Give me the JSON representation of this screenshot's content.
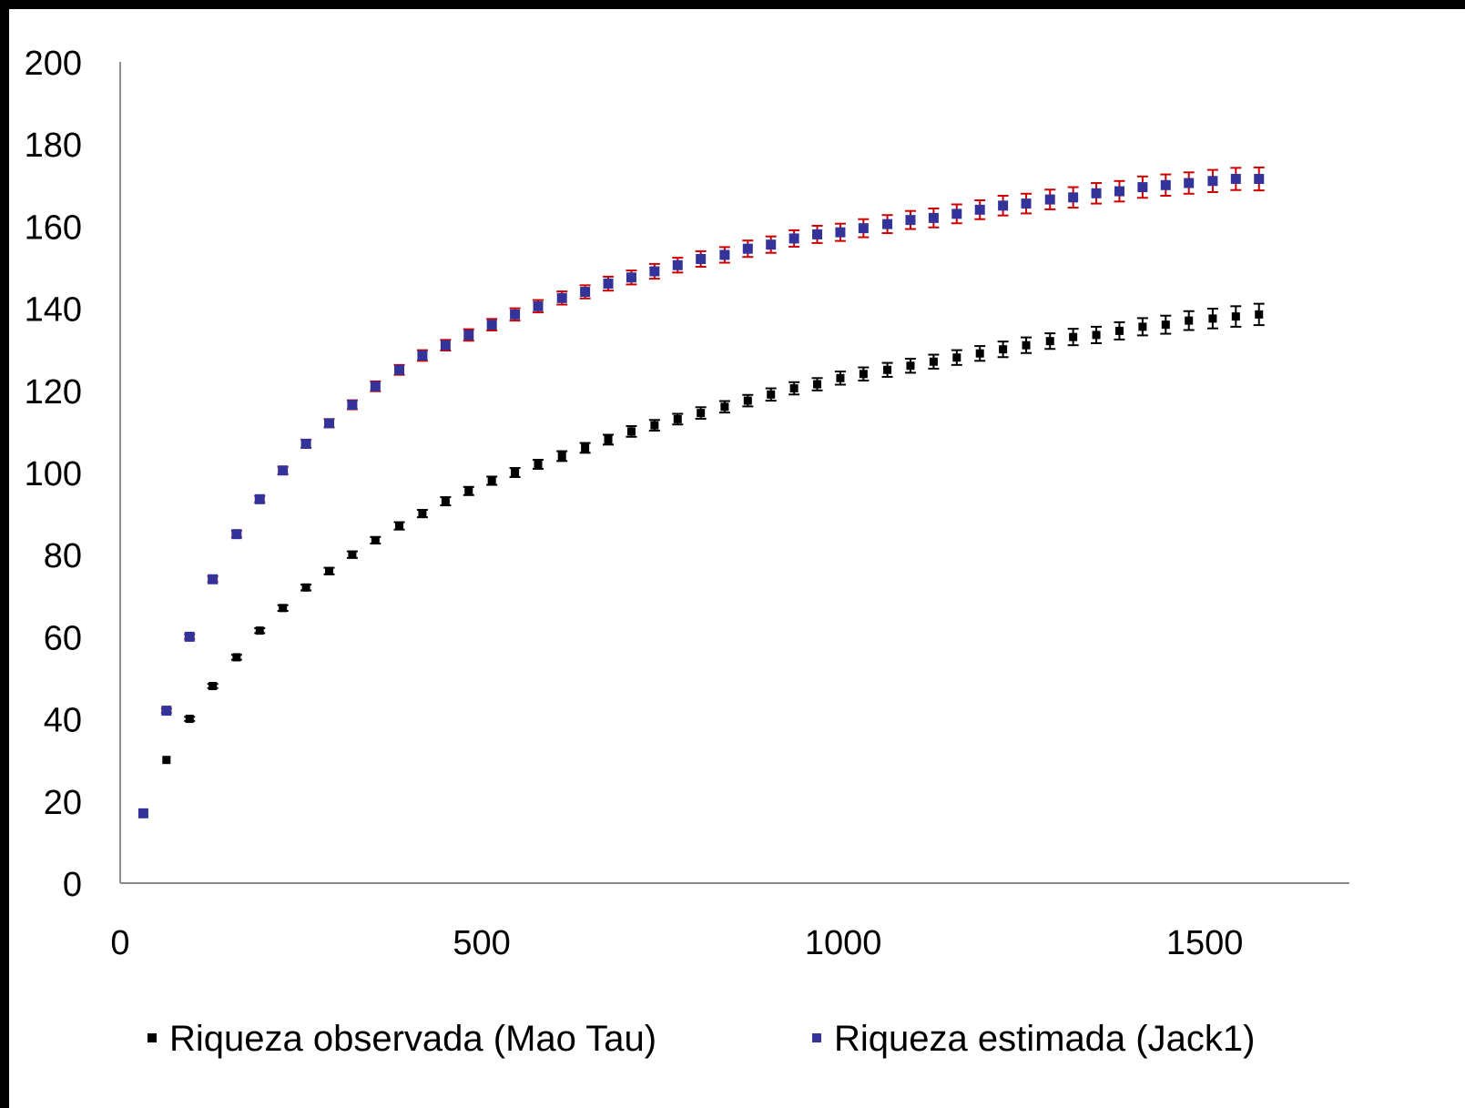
{
  "chart_data": {
    "type": "scatter",
    "title": "",
    "xlabel": "",
    "ylabel": "",
    "xlim": [
      0,
      1700
    ],
    "ylim": [
      0,
      200
    ],
    "x_ticks": [
      "0",
      "500",
      "1000",
      "1500"
    ],
    "y_ticks": [
      "0",
      "20",
      "40",
      "60",
      "80",
      "100",
      "120",
      "140",
      "160",
      "180",
      "200"
    ],
    "grid": false,
    "legend_position": "bottom",
    "x": [
      32,
      64,
      96,
      128,
      161,
      193,
      225,
      257,
      289,
      321,
      353,
      386,
      418,
      450,
      482,
      514,
      546,
      578,
      611,
      643,
      675,
      707,
      739,
      771,
      803,
      836,
      868,
      900,
      932,
      964,
      996,
      1028,
      1061,
      1093,
      1125,
      1157,
      1189,
      1221,
      1253,
      1286,
      1318,
      1350,
      1382,
      1414,
      1446,
      1478,
      1511,
      1543,
      1575
    ],
    "series": [
      {
        "name": "Riqueza observada (Mao Tau)",
        "color": "#000000",
        "error_color": "#000000",
        "values": [
          17,
          30,
          40,
          48,
          55,
          61.5,
          67,
          72,
          76,
          80,
          83.5,
          87,
          90,
          93,
          95.5,
          98,
          100,
          102,
          104,
          106,
          108,
          110,
          111.5,
          113,
          114.5,
          116,
          117.5,
          119,
          120.5,
          121.5,
          123,
          124,
          125,
          126,
          127,
          128,
          129,
          130,
          131,
          132,
          133,
          133.5,
          134.5,
          135.5,
          136,
          137,
          137.5,
          138,
          138.5
        ],
        "errors": [
          0.3,
          0.4,
          0.5,
          0.5,
          0.6,
          0.6,
          0.7,
          0.7,
          0.8,
          0.8,
          0.8,
          0.9,
          0.9,
          1.0,
          1.0,
          1.0,
          1.1,
          1.1,
          1.2,
          1.2,
          1.2,
          1.3,
          1.3,
          1.3,
          1.4,
          1.4,
          1.4,
          1.5,
          1.5,
          1.5,
          1.6,
          1.6,
          1.7,
          1.7,
          1.7,
          1.8,
          1.8,
          1.9,
          1.9,
          1.9,
          2.0,
          2.0,
          2.1,
          2.1,
          2.2,
          2.3,
          2.4,
          2.5,
          2.6
        ]
      },
      {
        "name": "Riqueza estimada (Jack1)",
        "color": "#33339a",
        "error_color": "#cc0000",
        "values": [
          17,
          42,
          60,
          74,
          85,
          93.5,
          100.5,
          107,
          112,
          116.5,
          121,
          125,
          128.5,
          131,
          133.5,
          136,
          138.5,
          140.5,
          142.5,
          144,
          146,
          147.5,
          149,
          150.5,
          152,
          153,
          154.5,
          155.5,
          157,
          158,
          158.5,
          159.5,
          160.5,
          161.5,
          162,
          163,
          164,
          165,
          165.5,
          166.5,
          167,
          168,
          168.5,
          169.5,
          170,
          170.5,
          171,
          171.5,
          171.5
        ],
        "errors": [
          0.3,
          0.5,
          0.6,
          0.7,
          0.8,
          0.8,
          0.9,
          1.0,
          1.0,
          1.1,
          1.2,
          1.2,
          1.3,
          1.3,
          1.4,
          1.4,
          1.5,
          1.5,
          1.6,
          1.6,
          1.7,
          1.7,
          1.8,
          1.8,
          1.9,
          1.9,
          2.0,
          2.0,
          2.0,
          2.1,
          2.1,
          2.2,
          2.2,
          2.2,
          2.3,
          2.3,
          2.3,
          2.4,
          2.4,
          2.4,
          2.5,
          2.5,
          2.5,
          2.6,
          2.6,
          2.6,
          2.7,
          2.7,
          2.8
        ]
      }
    ]
  }
}
